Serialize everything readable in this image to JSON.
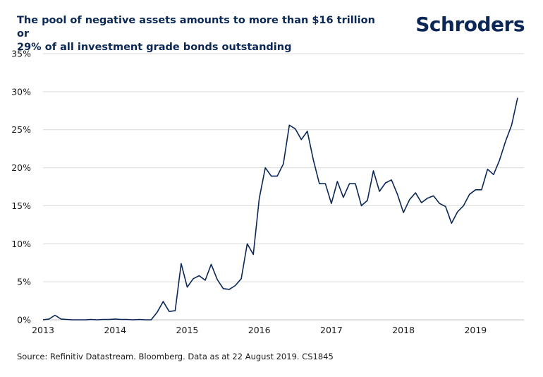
{
  "title_line1": "The pool of negative assets amounts to more than $16 trillion or",
  "title_line2": "29% of all investment grade bonds outstanding",
  "logo": "Schroders",
  "source": "Source: Refinitiv Datastream. Bloomberg. Data as at 22 August 2019. CS1845",
  "colors": {
    "line": "#0a2756",
    "grid": "#d9d9d9",
    "title": "#0a2756"
  },
  "chart_data": {
    "type": "line",
    "title": "The pool of negative assets amounts to more than $16 trillion or 29% of all investment grade bonds outstanding",
    "xlabel": "",
    "ylabel": "",
    "ylim": [
      0,
      35
    ],
    "xlim": [
      "2013-01",
      "2019-08"
    ],
    "grid": true,
    "y_ticks": [
      "0%",
      "5%",
      "10%",
      "15%",
      "20%",
      "25%",
      "30%",
      "35%"
    ],
    "x_ticks": [
      "2013",
      "2014",
      "2015",
      "2016",
      "2017",
      "2018",
      "2019"
    ],
    "series": [
      {
        "values": [
          [
            "2013-01",
            0.0
          ],
          [
            "2013-02",
            0.1
          ],
          [
            "2013-03",
            0.6
          ],
          [
            "2013-04",
            0.1
          ],
          [
            "2013-05",
            0.05
          ],
          [
            "2013-06",
            0.0
          ],
          [
            "2013-07",
            0.0
          ],
          [
            "2013-08",
            0.0
          ],
          [
            "2013-09",
            0.05
          ],
          [
            "2013-10",
            0.0
          ],
          [
            "2013-11",
            0.05
          ],
          [
            "2013-12",
            0.05
          ],
          [
            "2014-01",
            0.1
          ],
          [
            "2014-02",
            0.05
          ],
          [
            "2014-03",
            0.05
          ],
          [
            "2014-04",
            0.0
          ],
          [
            "2014-05",
            0.05
          ],
          [
            "2014-06",
            0.0
          ],
          [
            "2014-07",
            0.0
          ],
          [
            "2014-08",
            1.0
          ],
          [
            "2014-09",
            2.4
          ],
          [
            "2014-10",
            1.1
          ],
          [
            "2014-11",
            1.2
          ],
          [
            "2014-12",
            7.4
          ],
          [
            "2015-01",
            4.3
          ],
          [
            "2015-02",
            5.4
          ],
          [
            "2015-03",
            5.8
          ],
          [
            "2015-04",
            5.2
          ],
          [
            "2015-05",
            7.3
          ],
          [
            "2015-06",
            5.3
          ],
          [
            "2015-07",
            4.1
          ],
          [
            "2015-08",
            4.0
          ],
          [
            "2015-09",
            4.5
          ],
          [
            "2015-10",
            5.4
          ],
          [
            "2015-11",
            10.0
          ],
          [
            "2015-12",
            8.6
          ],
          [
            "2016-01",
            16.0
          ],
          [
            "2016-02",
            20.0
          ],
          [
            "2016-03",
            18.9
          ],
          [
            "2016-04",
            18.9
          ],
          [
            "2016-05",
            20.5
          ],
          [
            "2016-06",
            25.6
          ],
          [
            "2016-07",
            25.1
          ],
          [
            "2016-08",
            23.7
          ],
          [
            "2016-09",
            24.8
          ],
          [
            "2016-10",
            21.0
          ],
          [
            "2016-11",
            17.9
          ],
          [
            "2016-12",
            17.9
          ],
          [
            "2017-01",
            15.3
          ],
          [
            "2017-02",
            18.2
          ],
          [
            "2017-03",
            16.1
          ],
          [
            "2017-04",
            17.9
          ],
          [
            "2017-05",
            17.9
          ],
          [
            "2017-06",
            15.0
          ],
          [
            "2017-07",
            15.7
          ],
          [
            "2017-08",
            19.6
          ],
          [
            "2017-09",
            16.9
          ],
          [
            "2017-10",
            18.0
          ],
          [
            "2017-11",
            18.4
          ],
          [
            "2017-12",
            16.5
          ],
          [
            "2018-01",
            14.1
          ],
          [
            "2018-02",
            15.8
          ],
          [
            "2018-03",
            16.7
          ],
          [
            "2018-04",
            15.4
          ],
          [
            "2018-05",
            16.0
          ],
          [
            "2018-06",
            16.3
          ],
          [
            "2018-07",
            15.3
          ],
          [
            "2018-08",
            14.9
          ],
          [
            "2018-09",
            12.7
          ],
          [
            "2018-10",
            14.2
          ],
          [
            "2018-11",
            15.0
          ],
          [
            "2018-12",
            16.5
          ],
          [
            "2019-01",
            17.1
          ],
          [
            "2019-02",
            17.1
          ],
          [
            "2019-03",
            19.8
          ],
          [
            "2019-04",
            19.1
          ],
          [
            "2019-05",
            21.0
          ],
          [
            "2019-06",
            23.5
          ],
          [
            "2019-07",
            25.6
          ],
          [
            "2019-08",
            29.2
          ]
        ]
      }
    ]
  }
}
